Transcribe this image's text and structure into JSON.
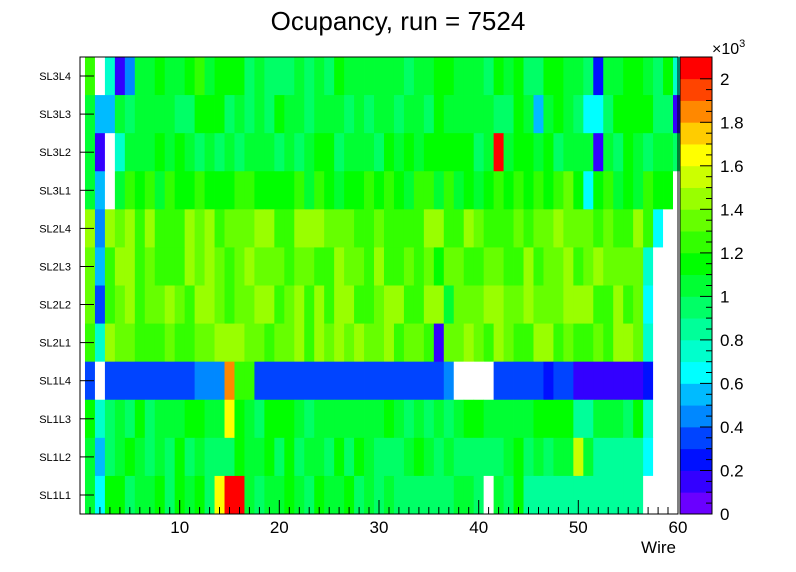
{
  "chart_data": {
    "type": "heatmap",
    "title": "Ocupancy, run = 7524",
    "xlabel": "Wire",
    "ylabel": "",
    "x_range": [
      0,
      60
    ],
    "x_ticks": [
      "10",
      "20",
      "30",
      "40",
      "50",
      "60"
    ],
    "rows": [
      "SL3L4",
      "SL3L3",
      "SL3L2",
      "SL3L1",
      "SL2L4",
      "SL2L3",
      "SL2L2",
      "SL2L1",
      "SL1L4",
      "SL1L3",
      "SL1L2",
      "SL1L1"
    ],
    "colorbar": {
      "range": [
        0,
        2100
      ],
      "tick_labels": [
        "0",
        "0.2",
        "0.4",
        "0.6",
        "0.8",
        "1",
        "1.2",
        "1.4",
        "1.6",
        "1.8",
        "2"
      ],
      "exponent_label": "×10",
      "exponent_power": "3",
      "palette": [
        "#6a00ff",
        "#3300ff",
        "#0010ff",
        "#0044ff",
        "#0088ff",
        "#00bbff",
        "#00ffff",
        "#00ffcc",
        "#00ff99",
        "#00ff66",
        "#00ff33",
        "#00ff00",
        "#33ff00",
        "#66ff00",
        "#99ff00",
        "#ccff00",
        "#ffff00",
        "#ffcc00",
        "#ff8800",
        "#ff4400",
        "#ff0000"
      ]
    },
    "segments": [
      {
        "row": "SL3L4",
        "base": 1100,
        "spans": [
          [
            1,
            2,
            0
          ],
          [
            2,
            3,
            750
          ],
          [
            3,
            4,
            150
          ],
          [
            4,
            5,
            450
          ],
          [
            5,
            16,
            1100
          ],
          [
            16,
            60,
            1080
          ],
          [
            51,
            52,
            200
          ],
          [
            59,
            60,
            750
          ]
        ]
      },
      {
        "row": "SL3L3",
        "base": 1050,
        "spans": [
          [
            1,
            3,
            550
          ],
          [
            3,
            4,
            950
          ],
          [
            4,
            60,
            1050
          ],
          [
            45,
            46,
            550
          ],
          [
            50,
            52,
            650
          ],
          [
            59,
            60,
            150
          ]
        ]
      },
      {
        "row": "SL3L2",
        "base": 1050,
        "spans": [
          [
            1,
            2,
            150
          ],
          [
            2,
            3,
            0
          ],
          [
            3,
            4,
            750
          ],
          [
            4,
            60,
            1050
          ],
          [
            41,
            42,
            2000
          ],
          [
            46,
            47,
            1200
          ],
          [
            51,
            52,
            150
          ]
        ]
      },
      {
        "row": "SL3L1",
        "base": 1100,
        "spans": [
          [
            1,
            2,
            550
          ],
          [
            2,
            3,
            0
          ],
          [
            3,
            59,
            1100
          ],
          [
            45,
            49,
            1200
          ],
          [
            50,
            51,
            650
          ],
          [
            59,
            60,
            0
          ]
        ]
      },
      {
        "row": "SL2L4",
        "base": 1300,
        "spans": [
          [
            1,
            2,
            450
          ],
          [
            2,
            6,
            1300
          ],
          [
            6,
            15,
            1350
          ],
          [
            18,
            19,
            1500
          ],
          [
            15,
            57,
            1300
          ],
          [
            57,
            58,
            650
          ],
          [
            58,
            60,
            0
          ]
        ]
      },
      {
        "row": "SL2L3",
        "base": 1300,
        "spans": [
          [
            1,
            2,
            550
          ],
          [
            2,
            56,
            1300
          ],
          [
            12,
            13,
            1450
          ],
          [
            35,
            36,
            1050
          ],
          [
            56,
            57,
            700
          ],
          [
            57,
            60,
            0
          ]
        ]
      },
      {
        "row": "SL2L2",
        "base": 1300,
        "spans": [
          [
            1,
            2,
            350
          ],
          [
            2,
            56,
            1300
          ],
          [
            12,
            13,
            1450
          ],
          [
            36,
            37,
            1050
          ],
          [
            56,
            57,
            600
          ],
          [
            57,
            60,
            0
          ]
        ]
      },
      {
        "row": "SL2L1",
        "base": 1300,
        "spans": [
          [
            1,
            2,
            700
          ],
          [
            2,
            56,
            1300
          ],
          [
            11,
            13,
            1450
          ],
          [
            35,
            36,
            120
          ],
          [
            56,
            57,
            750
          ],
          [
            57,
            60,
            0
          ]
        ]
      },
      {
        "row": "SL1L4",
        "base": 300,
        "spans": [
          [
            1,
            2,
            0
          ],
          [
            2,
            11,
            300
          ],
          [
            11,
            14,
            450
          ],
          [
            14,
            15,
            1800
          ],
          [
            15,
            17,
            1200
          ],
          [
            17,
            36,
            300
          ],
          [
            36,
            37,
            450
          ],
          [
            37,
            41,
            0
          ],
          [
            41,
            46,
            300
          ],
          [
            46,
            47,
            200
          ],
          [
            47,
            49,
            300
          ],
          [
            49,
            56,
            150
          ],
          [
            56,
            57,
            200
          ],
          [
            57,
            60,
            0
          ]
        ]
      },
      {
        "row": "SL1L3",
        "base": 1050,
        "spans": [
          [
            1,
            2,
            700
          ],
          [
            2,
            56,
            1050
          ],
          [
            14,
            15,
            1650
          ],
          [
            49,
            51,
            850
          ],
          [
            56,
            57,
            750
          ],
          [
            57,
            60,
            0
          ]
        ]
      },
      {
        "row": "SL1L2",
        "base": 1050,
        "spans": [
          [
            1,
            2,
            500
          ],
          [
            2,
            56,
            1050
          ],
          [
            49,
            50,
            1550
          ],
          [
            51,
            56,
            850
          ],
          [
            56,
            57,
            650
          ],
          [
            57,
            60,
            0
          ]
        ]
      },
      {
        "row": "SL1L1",
        "base": 1000,
        "spans": [
          [
            1,
            2,
            600
          ],
          [
            2,
            56,
            1000
          ],
          [
            13,
            14,
            1650
          ],
          [
            14,
            16,
            2050
          ],
          [
            40,
            41,
            0
          ],
          [
            44,
            47,
            800
          ],
          [
            47,
            56,
            850
          ],
          [
            56,
            60,
            0
          ]
        ]
      }
    ]
  }
}
